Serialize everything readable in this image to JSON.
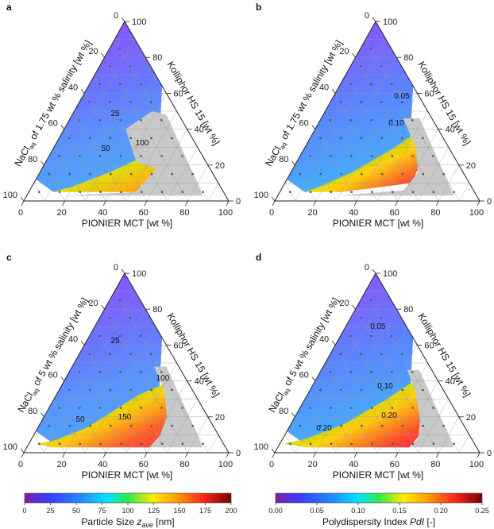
{
  "chart_data": [
    {
      "type": "heatmap",
      "panel": "a",
      "left_axis_label": "NaCl_aq of 1.75 wt % salinity [wt %]",
      "right_axis_label": "Kolliphor HS 15 [wt %]",
      "bottom_axis_label": "PIONIER MCT [wt %]",
      "ticks": [
        "0",
        "20",
        "40",
        "60",
        "80",
        "100"
      ],
      "contour_labels": [
        "25",
        "50",
        "100"
      ],
      "colorbar": "size"
    },
    {
      "type": "heatmap",
      "panel": "b",
      "left_axis_label": "NaCl_aq of 1.75 wt % salinity [wt %]",
      "right_axis_label": "Kolliphor HS 15 [wt %]",
      "bottom_axis_label": "PIONIER MCT [wt %]",
      "ticks": [
        "0",
        "20",
        "40",
        "60",
        "80",
        "100"
      ],
      "contour_labels": [
        "0.05",
        "0.10"
      ],
      "colorbar": "pdi"
    },
    {
      "type": "heatmap",
      "panel": "c",
      "left_axis_label": "NaCl_aq of 5 wt % salinity [wt %]",
      "right_axis_label": "Kolliphor HS 15 [wt %]",
      "bottom_axis_label": "PIONIER MCT [wt %]",
      "ticks": [
        "0",
        "20",
        "40",
        "60",
        "80",
        "100"
      ],
      "contour_labels": [
        "25",
        "50",
        "100",
        "150"
      ],
      "colorbar": "size"
    },
    {
      "type": "heatmap",
      "panel": "d",
      "left_axis_label": "NaCl_aq of 5 wt % salinity [wt %]",
      "right_axis_label": "Kolliphor HS 15 [wt %]",
      "bottom_axis_label": "PIONIER MCT [wt %]",
      "ticks": [
        "0",
        "20",
        "40",
        "60",
        "80",
        "100"
      ],
      "contour_labels": [
        "0.05",
        "0.10",
        "0.20",
        "0.20"
      ],
      "colorbar": "pdi"
    }
  ],
  "colorbars": {
    "size": {
      "title": "Particle Size z_ave [nm]",
      "ticks": [
        "0",
        "25",
        "50",
        "75",
        "100",
        "125",
        "150",
        "175",
        "200"
      ],
      "range": [
        0,
        200
      ]
    },
    "pdi": {
      "title": "Polydispersity Index PdI [-]",
      "ticks": [
        "0.00",
        "0.05",
        "0.10",
        "0.15",
        "0.20",
        "0.25"
      ],
      "range": [
        0,
        0.25
      ]
    }
  },
  "colors": {
    "grey_region": "#c8c8c8",
    "grid": "#9a9a9a",
    "points": "#555555"
  }
}
